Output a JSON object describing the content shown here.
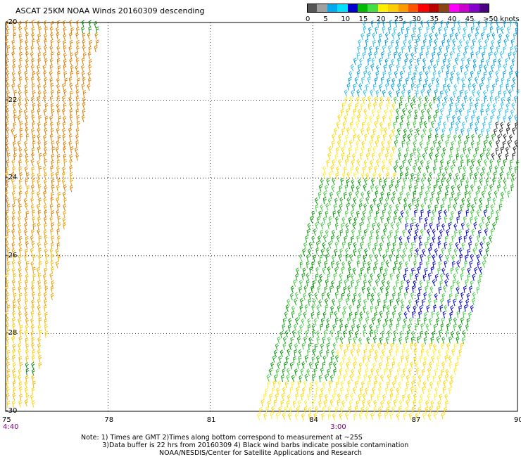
{
  "title": "ASCAT 25KM NOAA Winds 20160309 descending",
  "legend": {
    "labels": [
      "0",
      "5",
      "10",
      "15",
      "20",
      "25",
      "30",
      "35",
      "40",
      "45",
      ">50 knots"
    ],
    "colors": [
      "#555555",
      "#a0a0a0",
      "#00aaee",
      "#00e0ff",
      "#0000cc",
      "#00bb00",
      "#44dd44",
      "#ffee00",
      "#ffcc00",
      "#ff9900",
      "#ff5500",
      "#ff0000",
      "#bb0000",
      "#8b4513",
      "#ff00ff",
      "#cc00cc",
      "#8800cc",
      "#4b0082"
    ]
  },
  "map": {
    "lat_labels": [
      "-20",
      "-22",
      "-24",
      "-26",
      "-28",
      "-30"
    ],
    "lon_labels": [
      "75",
      "78",
      "81",
      "84",
      "87",
      "90"
    ],
    "time_labels": [
      {
        "text": "4:40",
        "lon": 75
      },
      {
        "text": "3:00",
        "lon": 84.6
      }
    ],
    "lat_range": [
      -30,
      -20
    ],
    "lon_range": [
      75,
      90
    ]
  },
  "swaths": {
    "west": {
      "colors": [
        "#e08000",
        "#f0a000",
        "#f5b800",
        "#ffd000"
      ]
    },
    "east": {
      "colors": [
        "#00a0e0",
        "#30c0f0",
        "#22aa22",
        "#009900",
        "#44cc44",
        "#0000cc",
        "#ffd800",
        "#ffee33"
      ]
    }
  },
  "notes": "Note: 1) Times are GMT 2)Times along bottom correspond to measurement at ~25S\n          3)Data buffer is 22 hrs from 20160309 4) Black wind barbs indicate possible contamination",
  "credit": "NOAA/NESDIS/Center for Satellite Applications and Research"
}
